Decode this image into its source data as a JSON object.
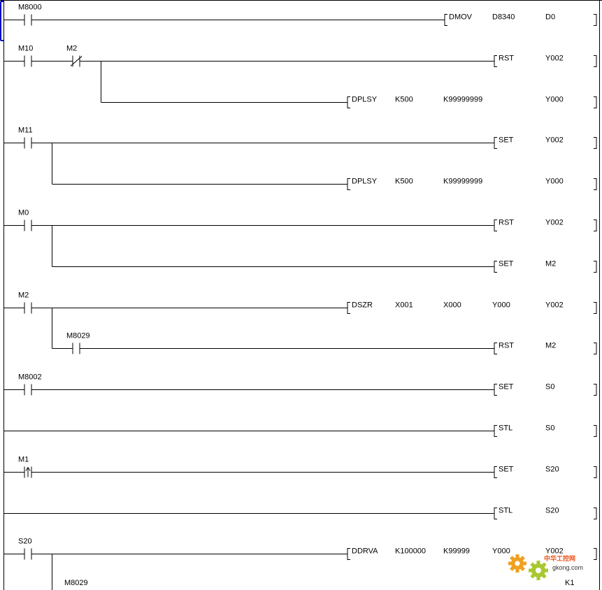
{
  "rungs": [
    {
      "contacts": [
        {
          "name": "M8000",
          "type": "NO"
        }
      ],
      "outputs": [
        {
          "instr": "DMOV",
          "ops": [
            "D8340",
            "D0"
          ]
        }
      ]
    },
    {
      "contacts": [
        {
          "name": "M10",
          "type": "NO"
        },
        {
          "name": "M2",
          "type": "NC"
        }
      ],
      "outputs": [
        {
          "instr": "RST",
          "ops": [
            "Y002"
          ]
        },
        {
          "instr": "DPLSY",
          "ops": [
            "K500",
            "K99999999",
            "Y000"
          ]
        }
      ]
    },
    {
      "contacts": [
        {
          "name": "M11",
          "type": "NO"
        }
      ],
      "outputs": [
        {
          "instr": "SET",
          "ops": [
            "Y002"
          ]
        },
        {
          "instr": "DPLSY",
          "ops": [
            "K500",
            "K99999999",
            "Y000"
          ]
        }
      ]
    },
    {
      "contacts": [
        {
          "name": "M0",
          "type": "NO"
        }
      ],
      "outputs": [
        {
          "instr": "RST",
          "ops": [
            "Y002"
          ]
        },
        {
          "instr": "SET",
          "ops": [
            "M2"
          ]
        }
      ]
    },
    {
      "contacts": [
        {
          "name": "M2",
          "type": "NO"
        }
      ],
      "outputs": [
        {
          "instr": "DSZR",
          "ops": [
            "X001",
            "X000",
            "Y000",
            "Y002"
          ]
        }
      ],
      "branch": {
        "contact": {
          "name": "M8029",
          "type": "NO"
        },
        "output": {
          "instr": "RST",
          "ops": [
            "M2"
          ]
        }
      }
    },
    {
      "contacts": [
        {
          "name": "M8002",
          "type": "NO"
        }
      ],
      "outputs": [
        {
          "instr": "SET",
          "ops": [
            "S0"
          ]
        }
      ]
    },
    {
      "contacts": [],
      "outputs": [
        {
          "instr": "STL",
          "ops": [
            "S0"
          ]
        }
      ]
    },
    {
      "contacts": [
        {
          "name": "M1",
          "type": "RISE"
        }
      ],
      "outputs": [
        {
          "instr": "SET",
          "ops": [
            "S20"
          ]
        }
      ]
    },
    {
      "contacts": [],
      "outputs": [
        {
          "instr": "STL",
          "ops": [
            "S20"
          ]
        }
      ]
    },
    {
      "contacts": [
        {
          "name": "S20",
          "type": "NO"
        }
      ],
      "outputs": [
        {
          "instr": "DDRVA",
          "ops": [
            "K100000",
            "K99999",
            "Y000",
            "Y002"
          ]
        }
      ],
      "partial": {
        "contact": "M8029",
        "operand": "K1"
      }
    }
  ],
  "watermark": {
    "cn": "中华工控网",
    "url": "gkong.com",
    "color": "#e8541a"
  }
}
